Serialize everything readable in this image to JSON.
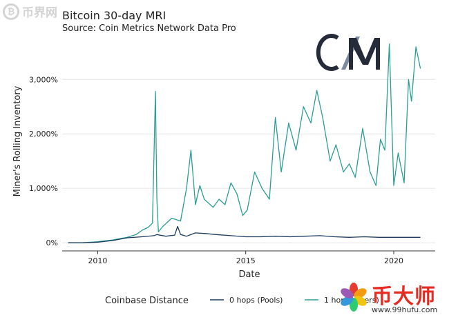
{
  "chart_data": {
    "type": "line",
    "title": "Bitcoin 30-day MRI",
    "subtitle": "Source: Coin Metrics Network Data Pro",
    "xlabel": "Date",
    "ylabel": "Miner's Rolling Inventory",
    "xlim": [
      2008.8,
      2021.4
    ],
    "ylim": [
      -150,
      3700
    ],
    "x_ticks": [
      2010,
      2015,
      2020
    ],
    "x_tick_labels": [
      "2010",
      "2015",
      "2020"
    ],
    "y_ticks": [
      0,
      1000,
      2000,
      3000
    ],
    "y_tick_labels": [
      "0%",
      "1,000%",
      "2,000%",
      "3,000%"
    ],
    "grid": "horizontal",
    "legend": {
      "title": "Coinbase Distance",
      "position": "bottom",
      "entries": [
        {
          "label": "0 hops (Pools)",
          "color": "#1b3a5e"
        },
        {
          "label": "1 hop (Miners)",
          "color": "#2a9d95"
        }
      ]
    },
    "series": [
      {
        "name": "0 hops (Pools)",
        "color": "#1b3a5e",
        "x": [
          2009.0,
          2009.5,
          2010.0,
          2010.5,
          2011.0,
          2011.5,
          2011.9,
          2012.0,
          2012.3,
          2012.6,
          2012.7,
          2012.8,
          2013.0,
          2013.3,
          2013.6,
          2014.0,
          2014.5,
          2015.0,
          2015.5,
          2016.0,
          2016.5,
          2017.0,
          2017.5,
          2018.0,
          2018.5,
          2019.0,
          2019.5,
          2020.0,
          2020.5,
          2020.9
        ],
        "y": [
          0,
          0,
          10,
          40,
          90,
          110,
          130,
          150,
          120,
          140,
          300,
          150,
          120,
          180,
          170,
          150,
          130,
          110,
          110,
          120,
          110,
          120,
          130,
          110,
          100,
          110,
          100,
          100,
          100,
          100
        ]
      },
      {
        "name": "1 hop (Miners)",
        "color": "#2a9d95",
        "x": [
          2009.0,
          2009.5,
          2010.0,
          2010.5,
          2011.0,
          2011.3,
          2011.5,
          2011.7,
          2011.85,
          2011.95,
          2012.0,
          2012.05,
          2012.2,
          2012.5,
          2012.8,
          2013.0,
          2013.15,
          2013.3,
          2013.45,
          2013.6,
          2013.9,
          2014.1,
          2014.3,
          2014.5,
          2014.7,
          2014.9,
          2015.05,
          2015.3,
          2015.55,
          2015.8,
          2016.0,
          2016.2,
          2016.45,
          2016.7,
          2016.95,
          2017.2,
          2017.4,
          2017.6,
          2017.85,
          2018.05,
          2018.3,
          2018.5,
          2018.7,
          2018.95,
          2019.2,
          2019.4,
          2019.55,
          2019.7,
          2019.85,
          2020.0,
          2020.15,
          2020.35,
          2020.5,
          2020.6,
          2020.75,
          2020.9
        ],
        "y": [
          0,
          0,
          20,
          50,
          100,
          150,
          230,
          280,
          360,
          2780,
          800,
          200,
          300,
          450,
          400,
          1000,
          1700,
          700,
          1050,
          800,
          650,
          800,
          700,
          1100,
          900,
          500,
          600,
          1300,
          1000,
          800,
          2300,
          1300,
          2200,
          1700,
          2500,
          2200,
          2800,
          2300,
          1500,
          1800,
          1300,
          1450,
          1200,
          2100,
          1300,
          1050,
          1900,
          1700,
          3650,
          1050,
          1650,
          1100,
          3000,
          2600,
          3600,
          3200
        ]
      }
    ]
  }
}
